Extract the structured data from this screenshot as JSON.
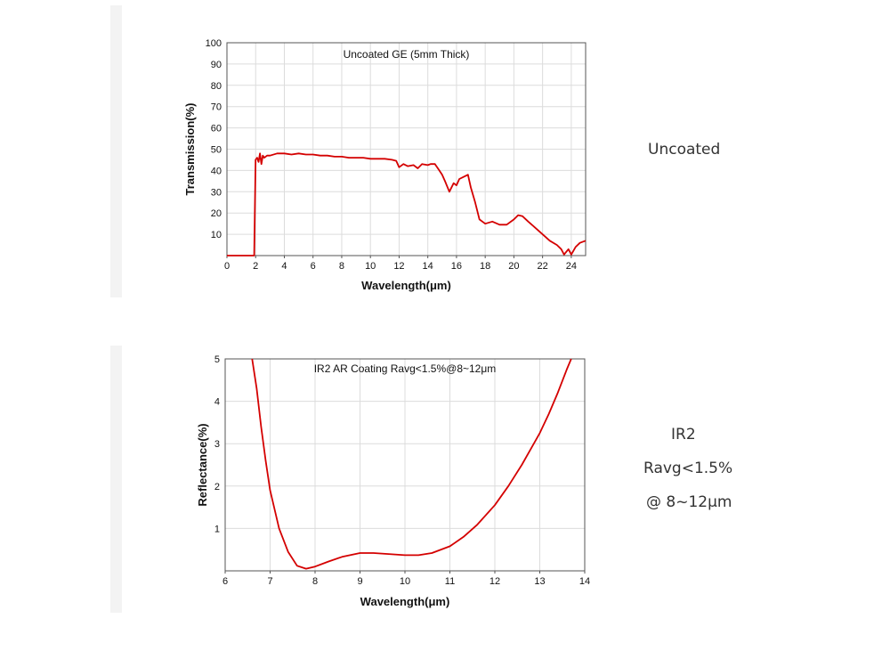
{
  "colors": {
    "line": "#d40000",
    "grid": "#dcdcdc",
    "axis": "#000000",
    "text": "#111111"
  },
  "chart_data": [
    {
      "type": "line",
      "title": "Uncoated GE (5mm Thick)",
      "xlabel": "Wavelength(μm)",
      "ylabel": "Transmission(%)",
      "xlim": [
        0,
        25
      ],
      "ylim": [
        0,
        100
      ],
      "xticks": [
        "0",
        "2",
        "4",
        "6",
        "8",
        "10",
        "12",
        "14",
        "16",
        "18",
        "20",
        "22",
        "24"
      ],
      "yticks": [
        "10",
        "20",
        "30",
        "40",
        "50",
        "60",
        "70",
        "80",
        "90",
        "100"
      ],
      "grid": true,
      "series": [
        {
          "x": [
            0,
            1.5,
            1.9,
            2.0,
            2.1,
            2.2,
            2.3,
            2.4,
            2.5,
            2.6,
            2.8,
            3.0,
            3.5,
            4.0,
            4.5,
            5.0,
            5.5,
            6.0,
            6.5,
            7.0,
            7.5,
            8.0,
            8.5,
            9.0,
            9.5,
            10.0,
            10.5,
            11.0,
            11.5,
            11.8,
            12.0,
            12.3,
            12.6,
            13.0,
            13.3,
            13.6,
            14.0,
            14.2,
            14.5,
            14.8,
            15.0,
            15.2,
            15.5,
            15.8,
            16.0,
            16.2,
            16.5,
            16.8,
            17.0,
            17.3,
            17.6,
            18.0,
            18.5,
            19.0,
            19.5,
            20.0,
            20.3,
            20.6,
            21.0,
            21.5,
            22.0,
            22.5,
            23.0,
            23.3,
            23.5,
            23.8,
            24.0,
            24.3,
            24.6,
            25.0
          ],
          "y": [
            0,
            0,
            0,
            45,
            46,
            44,
            48,
            43,
            47,
            46,
            47,
            47,
            48,
            48,
            47.5,
            48,
            47.5,
            47.5,
            47,
            47,
            46.5,
            46.5,
            46,
            46,
            46,
            45.5,
            45.5,
            45.5,
            45,
            44.5,
            41.5,
            43,
            42,
            42.5,
            41,
            43,
            42.5,
            43,
            43,
            40,
            38,
            35,
            30,
            34,
            33,
            36,
            37,
            38,
            32,
            25,
            17,
            15,
            16,
            14.5,
            14.5,
            17,
            19,
            18.5,
            16,
            13,
            10,
            7,
            5,
            3,
            0.5,
            3,
            0.5,
            4,
            6,
            7
          ]
        }
      ]
    },
    {
      "type": "line",
      "title": "IR2 AR Coating Ravg<1.5%@8~12μm",
      "xlabel": "Wavelength(μm)",
      "ylabel": "Reflectance(%)",
      "xlim": [
        6,
        14
      ],
      "ylim": [
        0,
        5
      ],
      "xticks": [
        "6",
        "7",
        "8",
        "9",
        "10",
        "11",
        "12",
        "13",
        "14"
      ],
      "yticks": [
        "1",
        "2",
        "3",
        "4",
        "5"
      ],
      "grid": true,
      "series": [
        {
          "x": [
            6.6,
            6.7,
            6.8,
            6.9,
            7.0,
            7.2,
            7.4,
            7.6,
            7.8,
            8.0,
            8.3,
            8.6,
            9.0,
            9.3,
            9.6,
            10.0,
            10.3,
            10.6,
            11.0,
            11.3,
            11.6,
            12.0,
            12.3,
            12.6,
            13.0,
            13.2,
            13.4,
            13.6,
            13.7
          ],
          "y": [
            5,
            4.3,
            3.4,
            2.6,
            1.9,
            1.0,
            0.45,
            0.12,
            0.05,
            0.1,
            0.22,
            0.33,
            0.42,
            0.42,
            0.4,
            0.37,
            0.37,
            0.42,
            0.58,
            0.8,
            1.08,
            1.55,
            2.0,
            2.5,
            3.25,
            3.7,
            4.2,
            4.75,
            5.0
          ]
        }
      ]
    }
  ],
  "labels": {
    "uncoated": "Uncoated",
    "ir2": "IR2",
    "ravg": "Ravg<1.5%",
    "range": "@ 8~12μm"
  }
}
